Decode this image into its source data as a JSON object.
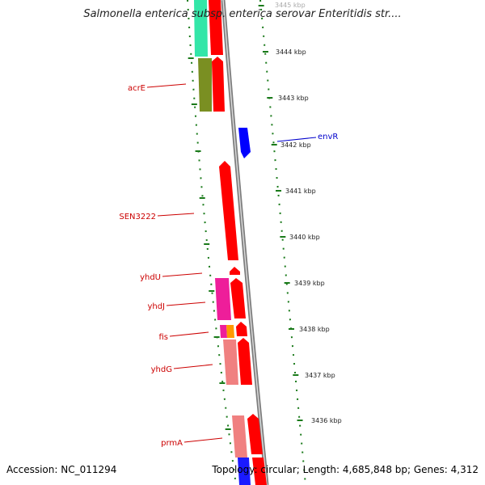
{
  "title": "Salmonella enterica subsp. enterica serovar Enteritidis str....",
  "accession": "Accession: NC_011294",
  "summary": "Topology: circular; Length: 4,685,848 bp; Genes: 4,312",
  "colors": {
    "backbone": "#808080",
    "tick": "#1a7a1a",
    "label_red": "#cc0000",
    "label_blue": "#0000cc"
  },
  "scale_labels": [
    "3445 kbp",
    "3444 kbp",
    "3443 kbp",
    "3442 kbp",
    "3441 kbp",
    "3440 kbp",
    "3439 kbp",
    "3438 kbp",
    "3437 kbp",
    "3436 kbp"
  ],
  "gene_labels": [
    {
      "id": "acrE",
      "text": "acrE",
      "color": "red"
    },
    {
      "id": "envR",
      "text": "envR",
      "color": "blue"
    },
    {
      "id": "SEN3222",
      "text": "SEN3222",
      "color": "red"
    },
    {
      "id": "yhdU",
      "text": "yhdU",
      "color": "red"
    },
    {
      "id": "yhdJ",
      "text": "yhdJ",
      "color": "red"
    },
    {
      "id": "fis",
      "text": "fis",
      "color": "red"
    },
    {
      "id": "yhdG",
      "text": "yhdG",
      "color": "red"
    },
    {
      "id": "prmA",
      "text": "prmA",
      "color": "red"
    }
  ]
}
